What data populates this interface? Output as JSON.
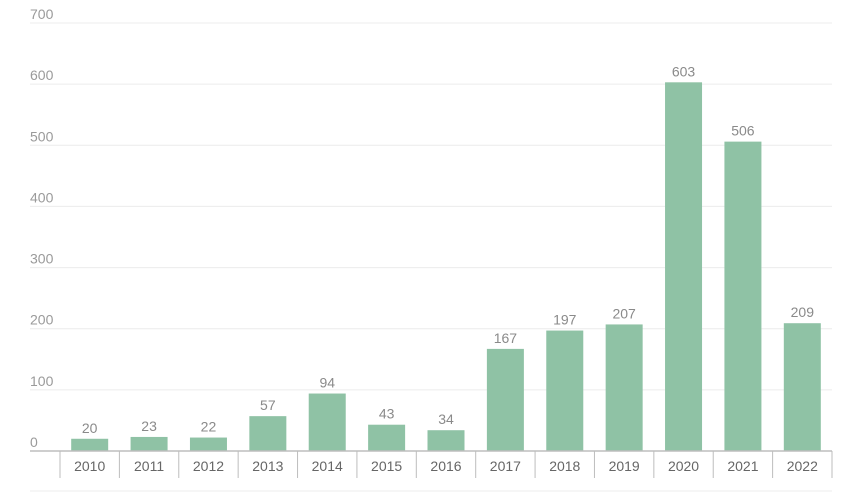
{
  "chart_data": {
    "type": "bar",
    "title": "",
    "xlabel": "",
    "ylabel": "",
    "categories": [
      "2010",
      "2011",
      "2012",
      "2013",
      "2014",
      "2015",
      "2016",
      "2017",
      "2018",
      "2019",
      "2020",
      "2021",
      "2022"
    ],
    "values": [
      20,
      23,
      22,
      57,
      94,
      43,
      34,
      167,
      197,
      207,
      603,
      506,
      209
    ],
    "data_labels": [
      "20",
      "23",
      "22",
      "57",
      "94",
      "43",
      "34",
      "167",
      "197",
      "207",
      "603",
      "506",
      "209"
    ],
    "yticks": [
      "0",
      "100",
      "200",
      "300",
      "400",
      "500",
      "600",
      "700"
    ],
    "ylim": [
      0,
      700
    ],
    "grid": true,
    "legend": "none",
    "colors": {
      "bar": "#8fc2a5",
      "grid": "#ececec",
      "axis": "#bdbdbd",
      "tick_text": "#9a9a9a",
      "category_text": "#666666",
      "label_text": "#8a8a8a"
    }
  }
}
